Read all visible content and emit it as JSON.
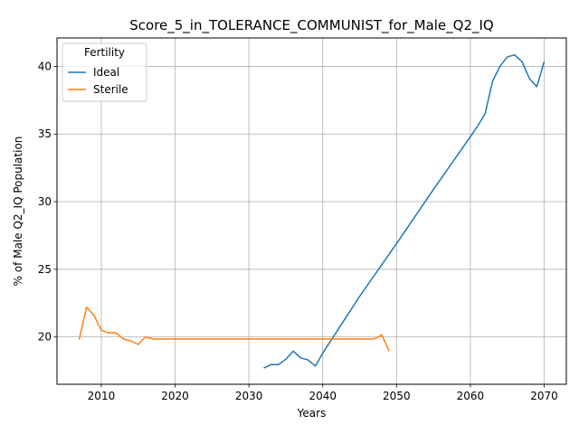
{
  "chart_data": {
    "type": "line",
    "title": "Score_5_in_TOLERANCE_COMMUNIST_for_Male_Q2_IQ",
    "xlabel": "Years",
    "ylabel": "% of Male Q2_IQ Population",
    "xlim": [
      2004,
      2073
    ],
    "ylim": [
      16.5,
      42.1
    ],
    "xticks": [
      2010,
      2020,
      2030,
      2040,
      2050,
      2060,
      2070
    ],
    "yticks": [
      20,
      25,
      30,
      35,
      40
    ],
    "grid": true,
    "legend": {
      "title": "Fertility",
      "placement": "top-left"
    },
    "series": [
      {
        "name": "Ideal",
        "color": "#1f77b4",
        "x": [
          2032,
          2033,
          2034,
          2035,
          2036,
          2037,
          2038,
          2039,
          2040,
          2045,
          2050,
          2055,
          2060,
          2061,
          2062,
          2063,
          2064,
          2065,
          2066,
          2067,
          2068,
          2069,
          2070
        ],
        "y": [
          17.7,
          17.95,
          17.95,
          18.35,
          18.95,
          18.45,
          18.3,
          17.85,
          18.8,
          23.0,
          26.9,
          30.9,
          34.8,
          35.6,
          36.5,
          38.9,
          40.0,
          40.7,
          40.85,
          40.35,
          39.1,
          38.5,
          40.35
        ]
      },
      {
        "name": "Sterile",
        "color": "#ff7f0e",
        "x": [
          2007,
          2008,
          2009,
          2010,
          2011,
          2012,
          2013,
          2014,
          2015,
          2016,
          2017,
          2018,
          2020,
          2025,
          2030,
          2035,
          2040,
          2045,
          2047,
          2048,
          2049
        ],
        "y": [
          19.8,
          22.2,
          21.6,
          20.5,
          20.3,
          20.3,
          19.85,
          19.7,
          19.45,
          20.0,
          19.85,
          19.85,
          19.85,
          19.85,
          19.85,
          19.85,
          19.85,
          19.85,
          19.85,
          20.15,
          18.95
        ]
      }
    ]
  }
}
